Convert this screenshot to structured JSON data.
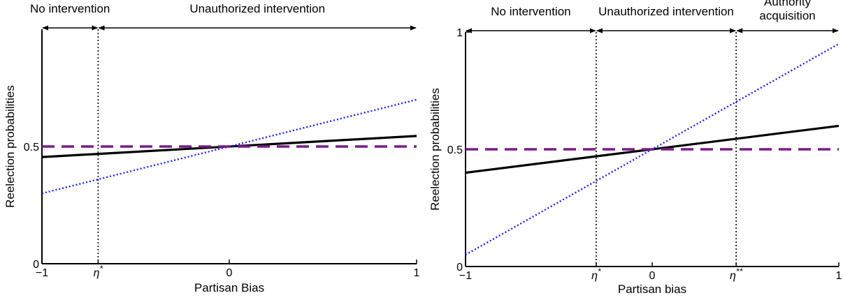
{
  "chart_data": [
    {
      "type": "line",
      "xlabel": "Partisan Bias",
      "ylabel": "Reelection probabilities",
      "xlim": [
        -1,
        1
      ],
      "ylim": [
        0,
        1
      ],
      "x_ticks": [
        {
          "value": -1,
          "label": "−1"
        },
        {
          "value": -0.7,
          "label": "η*"
        },
        {
          "value": 0,
          "label": "0"
        },
        {
          "value": 1,
          "label": "1"
        }
      ],
      "y_ticks": [
        {
          "value": 0,
          "label": "0"
        },
        {
          "value": 0.5,
          "label": "0.5"
        }
      ],
      "thresholds": [
        -0.7
      ],
      "regions": [
        {
          "label": "No intervention",
          "from": -1,
          "to": -0.7
        },
        {
          "label": "Unauthorized intervention",
          "from": -0.7,
          "to": 1
        }
      ],
      "series": [
        {
          "style": "solid",
          "color": "#000000",
          "x": [
            -1,
            1
          ],
          "y": [
            0.455,
            0.545
          ]
        },
        {
          "style": "dotted",
          "color": "#1f1fe6",
          "x": [
            -1,
            1
          ],
          "y": [
            0.3,
            0.7
          ]
        },
        {
          "style": "dashed",
          "color": "#7a1a8a",
          "x": [
            -1,
            1
          ],
          "y": [
            0.5,
            0.5
          ]
        }
      ],
      "grid": false
    },
    {
      "type": "line",
      "xlabel": "Partisan bias",
      "ylabel": "Reelection probabilities",
      "xlim": [
        -1,
        1
      ],
      "ylim": [
        0,
        1
      ],
      "x_ticks": [
        {
          "value": -1,
          "label": "−1"
        },
        {
          "value": -0.3,
          "label": "η*"
        },
        {
          "value": 0,
          "label": "0"
        },
        {
          "value": 0.45,
          "label": "η**"
        },
        {
          "value": 1,
          "label": "1"
        }
      ],
      "y_ticks": [
        {
          "value": 0,
          "label": "0"
        },
        {
          "value": 0.5,
          "label": "0.5"
        },
        {
          "value": 1,
          "label": "1"
        }
      ],
      "thresholds": [
        -0.3,
        0.45
      ],
      "regions": [
        {
          "label": "No intervention",
          "from": -1,
          "to": -0.3
        },
        {
          "label": "Unauthorized intervention",
          "from": -0.3,
          "to": 0.45
        },
        {
          "label": "Authority acquisition",
          "lines": [
            "Authority",
            "acquisition"
          ],
          "from": 0.45,
          "to": 1
        }
      ],
      "series": [
        {
          "style": "solid",
          "color": "#000000",
          "x": [
            -1,
            1
          ],
          "y": [
            0.4,
            0.6
          ]
        },
        {
          "style": "dotted",
          "color": "#1f1fe6",
          "x": [
            -1,
            1
          ],
          "y": [
            0.05,
            0.95
          ]
        },
        {
          "style": "dashed",
          "color": "#7a1a8a",
          "x": [
            -1,
            1
          ],
          "y": [
            0.5,
            0.5
          ]
        }
      ],
      "grid": false
    }
  ]
}
